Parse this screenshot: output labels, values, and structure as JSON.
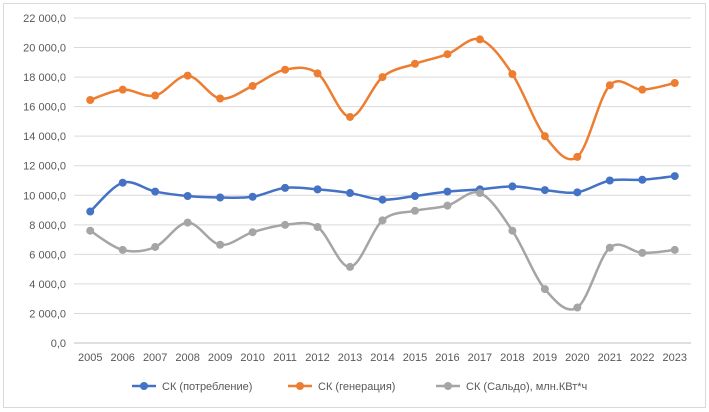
{
  "chart_data": {
    "type": "line",
    "title": "",
    "xlabel": "",
    "ylabel": "",
    "ylim": [
      0,
      22000
    ],
    "ytick_step": 2000,
    "y_tick_labels": [
      "0,0",
      "2 000,0",
      "4 000,0",
      "6 000,0",
      "8 000,0",
      "10 000,0",
      "12 000,0",
      "14 000,0",
      "16 000,0",
      "18 000,0",
      "20 000,0",
      "22 000,0"
    ],
    "categories": [
      "2005",
      "2006",
      "2007",
      "2008",
      "2009",
      "2010",
      "2011",
      "2012",
      "2013",
      "2014",
      "2015",
      "2016",
      "2017",
      "2018",
      "2019",
      "2020",
      "2021",
      "2022",
      "2023"
    ],
    "grid": true,
    "legend_position": "bottom",
    "series": [
      {
        "name": "СК (потребление)",
        "color": "#4472c4",
        "values": [
          8900,
          10850,
          10250,
          9950,
          9850,
          9900,
          10500,
          10400,
          10150,
          9700,
          9950,
          10250,
          10400,
          10600,
          10350,
          10200,
          11000,
          11050,
          11300
        ]
      },
      {
        "name": "СК (генерация)",
        "color": "#ed7d31",
        "values": [
          16450,
          17150,
          16750,
          18100,
          16550,
          17400,
          18500,
          18250,
          15300,
          18000,
          18900,
          19550,
          20550,
          18200,
          14000,
          12600,
          17450,
          17150,
          17600
        ]
      },
      {
        "name": "СК (Сальдо), млн.КВт*ч",
        "color": "#a5a5a5",
        "values": [
          7600,
          6300,
          6500,
          8150,
          6650,
          7500,
          8000,
          7850,
          5150,
          8300,
          8950,
          9300,
          10150,
          7600,
          3650,
          2400,
          6450,
          6100,
          6300
        ]
      }
    ]
  }
}
